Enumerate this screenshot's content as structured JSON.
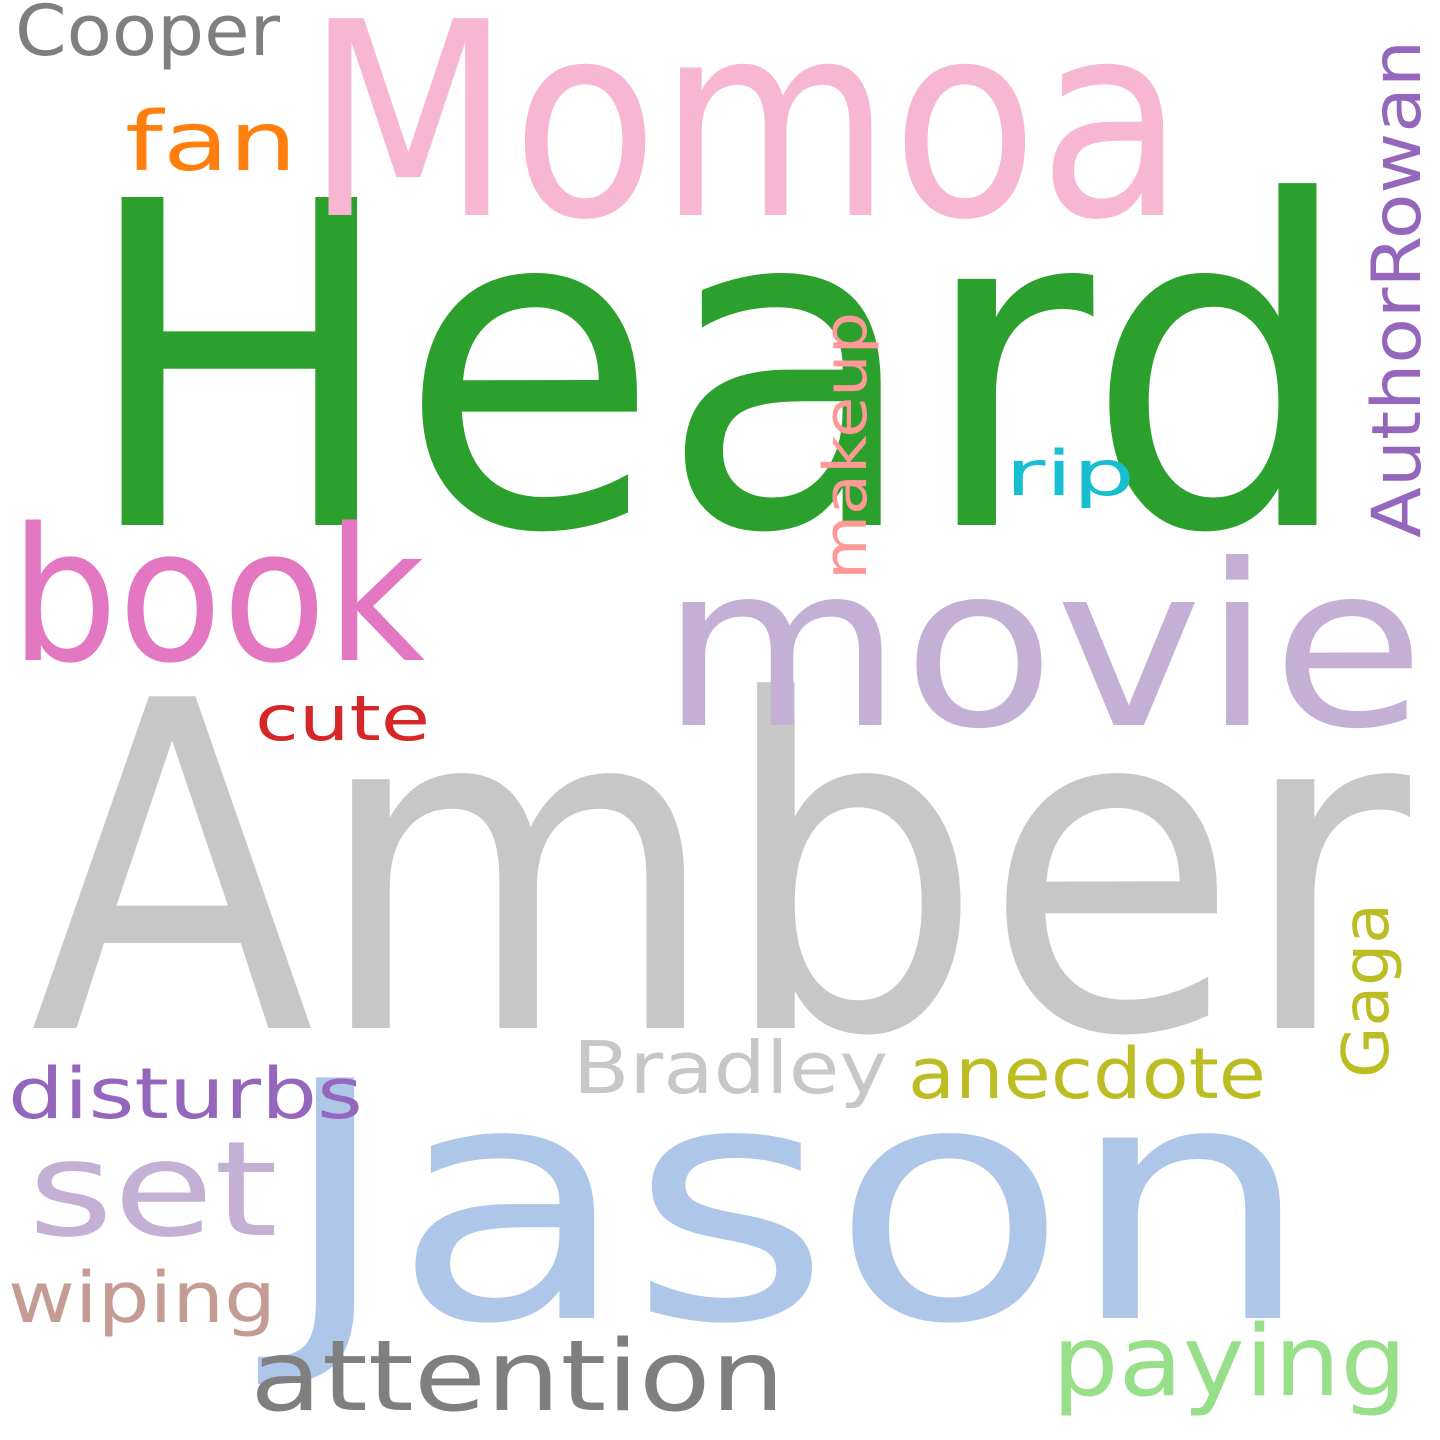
{
  "words": [
    {
      "text": "Heard",
      "color": "#2ca02c",
      "rotate": 0
    },
    {
      "text": "Amber",
      "color": "#c7c7c7",
      "rotate": 0
    },
    {
      "text": "Momoa",
      "color": "#f7b6d2",
      "rotate": 0
    },
    {
      "text": "Jason",
      "color": "#aec7e8",
      "rotate": 0
    },
    {
      "text": "movie",
      "color": "#c5b0d5",
      "rotate": 0
    },
    {
      "text": "book",
      "color": "#e377c2",
      "rotate": 0
    },
    {
      "text": "set",
      "color": "#c5b0d5",
      "rotate": 0
    },
    {
      "text": "attention",
      "color": "#7f7f7f",
      "rotate": 0
    },
    {
      "text": "paying",
      "color": "#98df8a",
      "rotate": 0
    },
    {
      "text": "anecdote",
      "color": "#bcbd22",
      "rotate": 0
    },
    {
      "text": "Bradley",
      "color": "#c7c7c7",
      "rotate": 0
    },
    {
      "text": "disturbs",
      "color": "#9467bd",
      "rotate": 0
    },
    {
      "text": "wiping",
      "color": "#c49c94",
      "rotate": 0
    },
    {
      "text": "cute",
      "color": "#d62728",
      "rotate": 0
    },
    {
      "text": "fan",
      "color": "#ff7f0e",
      "rotate": 0
    },
    {
      "text": "Cooper",
      "color": "#7f7f7f",
      "rotate": 0
    },
    {
      "text": "rip",
      "color": "#17becf",
      "rotate": 0
    },
    {
      "text": "makeup",
      "color": "#ff9896",
      "rotate": -90
    },
    {
      "text": "AuthorRowan",
      "color": "#9467bd",
      "rotate": -90
    },
    {
      "text": "Gaga",
      "color": "#bcbd22",
      "rotate": -90
    }
  ]
}
